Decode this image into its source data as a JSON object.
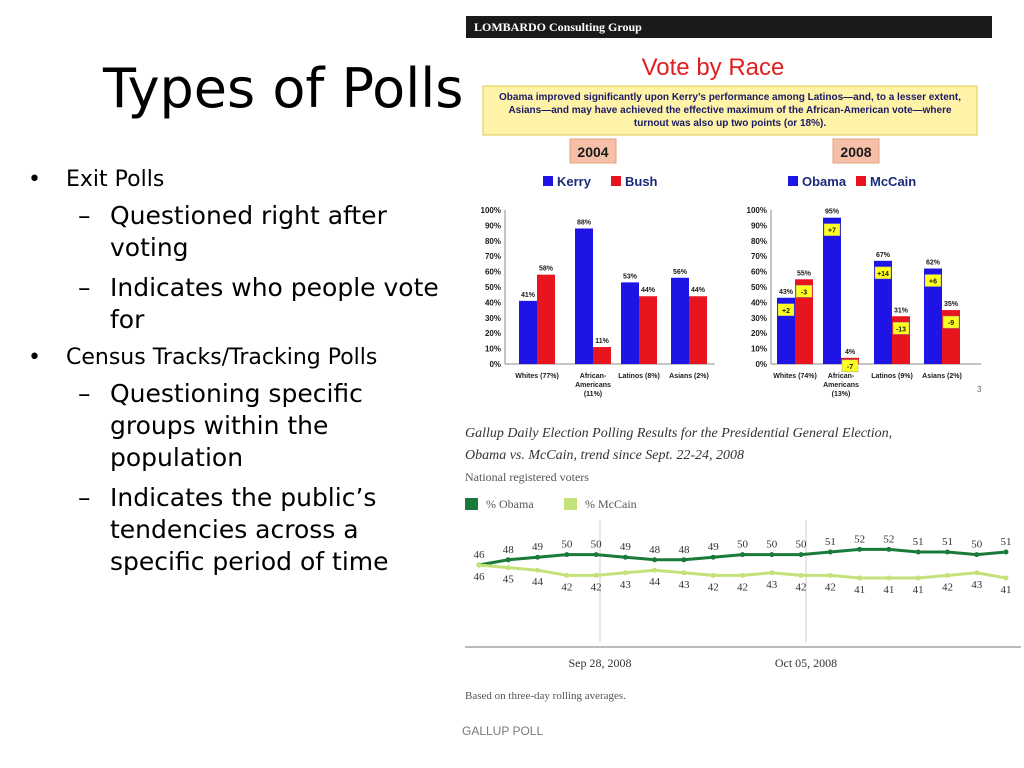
{
  "slide": {
    "title": "Types of Polls",
    "bullets": [
      {
        "text": "Exit Polls",
        "subs": [
          "Questioned right after voting",
          "Indicates who people vote for"
        ]
      },
      {
        "text": "Census Tracks/Tracking Polls",
        "subs": [
          "Questioning specific groups within the population",
          "Indicates the public’s tendencies across a specific period of time"
        ]
      }
    ]
  },
  "chart_data": [
    {
      "type": "bar",
      "header": "LOMBARDO Consulting Group",
      "title": "Vote by Race",
      "note_lines": [
        "Obama improved significantly upon Kerry’s performance among Latinos—and, to a lesser extent,",
        "Asians—and may have achieved the effective maximum of the African-American vote—where",
        "turnout was also up two points (or 18%)."
      ],
      "panels": [
        {
          "year": "2004",
          "categories": [
            [
              "Whites (77%)"
            ],
            [
              "African-",
              "Americans",
              "(11%)"
            ],
            [
              "Latinos (8%)"
            ],
            [
              "Asians (2%)"
            ]
          ],
          "series": [
            {
              "name": "Kerry",
              "color": "#1e14e6",
              "values": [
                41,
                88,
                53,
                56
              ],
              "labels": [
                "41%",
                "88%",
                "53%",
                "56%"
              ]
            },
            {
              "name": "Bush",
              "color": "#e8141e",
              "values": [
                58,
                11,
                44,
                44
              ],
              "labels": [
                "58%",
                "11%",
                "44%",
                "44%"
              ]
            }
          ],
          "ylim": [
            0,
            100
          ],
          "yticks": [
            "0%",
            "10%",
            "20%",
            "30%",
            "40%",
            "50%",
            "60%",
            "70%",
            "80%",
            "90%",
            "100%"
          ]
        },
        {
          "year": "2008",
          "categories": [
            [
              "Whites (74%)"
            ],
            [
              "African-",
              "Americans",
              "(13%)"
            ],
            [
              "Latinos (9%)"
            ],
            [
              "Asians (2%)"
            ]
          ],
          "series": [
            {
              "name": "Obama",
              "color": "#1e14e6",
              "values": [
                43,
                95,
                67,
                62
              ],
              "labels": [
                "43%",
                "95%",
                "67%",
                "62%"
              ],
              "changes": [
                "+2",
                "+7",
                "+14",
                "+6"
              ]
            },
            {
              "name": "McCain",
              "color": "#e8141e",
              "values": [
                55,
                4,
                31,
                35
              ],
              "labels": [
                "55%",
                "4%",
                "31%",
                "35%"
              ],
              "changes": [
                "-3",
                "-7",
                "-13",
                "-9"
              ]
            }
          ],
          "ylim": [
            0,
            100
          ],
          "yticks": [
            "0%",
            "10%",
            "20%",
            "30%",
            "40%",
            "50%",
            "60%",
            "70%",
            "80%",
            "90%",
            "100%"
          ]
        }
      ],
      "page_number": "3"
    },
    {
      "type": "line",
      "title_lines": [
        "Gallup Daily Election Polling Results for the Presidential General Election,",
        "Obama vs. McCain, trend since Sept. 22-24, 2008"
      ],
      "subtitle": "National registered voters",
      "series": [
        {
          "name": "% Obama",
          "color": "#1a7a3a",
          "values": [
            46,
            48,
            49,
            50,
            50,
            49,
            48,
            48,
            49,
            50,
            50,
            50,
            51,
            52,
            52,
            51,
            51,
            50,
            51
          ]
        },
        {
          "name": "% McCain",
          "color": "#c3e37a",
          "values": [
            46,
            45,
            44,
            42,
            42,
            43,
            44,
            43,
            42,
            42,
            43,
            42,
            42,
            41,
            41,
            41,
            42,
            43,
            41
          ]
        }
      ],
      "x_tick_labels": [
        "Sep 28, 2008",
        "Oct 05, 2008"
      ],
      "footnote": "Based on three-day rolling averages.",
      "logo_text": "GALLUP POLL"
    }
  ]
}
